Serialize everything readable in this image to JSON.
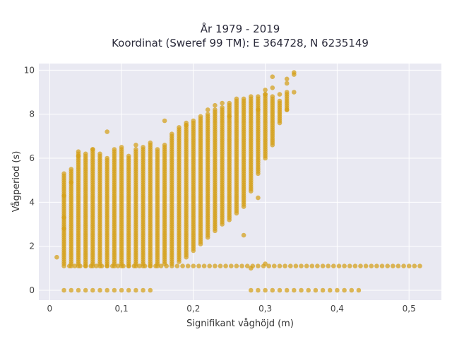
{
  "chart_data": {
    "type": "scatter",
    "title_lines": [
      "År 1979 - 2019",
      "Koordinat (Sweref 99 TM): E 364728, N 6235149"
    ],
    "xlabel": "Signifikant våghöjd (m)",
    "ylabel": "Vågperiod (s)",
    "xlim": [
      -0.015,
      0.545
    ],
    "ylim": [
      -0.45,
      10.3
    ],
    "x_ticks": [
      {
        "value": 0,
        "label": "0"
      },
      {
        "value": 0.1,
        "label": "0,1"
      },
      {
        "value": 0.2,
        "label": "0,2"
      },
      {
        "value": 0.3,
        "label": "0,3"
      },
      {
        "value": 0.4,
        "label": "0,4"
      },
      {
        "value": 0.5,
        "label": "0,5"
      }
    ],
    "y_ticks": [
      {
        "value": 0,
        "label": "0"
      },
      {
        "value": 2,
        "label": "2"
      },
      {
        "value": 4,
        "label": "4"
      },
      {
        "value": 6,
        "label": "6"
      },
      {
        "value": 8,
        "label": "8"
      },
      {
        "value": 10,
        "label": "10"
      }
    ],
    "grid": true,
    "marker_color": "#d4a017",
    "background_color": "#e9e9f2",
    "columns": [
      {
        "x": 0.02,
        "ymin": 1.2,
        "ymax": 5.3
      },
      {
        "x": 0.03,
        "ymin": 1.1,
        "ymax": 5.5
      },
      {
        "x": 0.04,
        "ymin": 1.1,
        "ymax": 6.3
      },
      {
        "x": 0.05,
        "ymin": 1.1,
        "ymax": 6.2
      },
      {
        "x": 0.06,
        "ymin": 1.1,
        "ymax": 6.4
      },
      {
        "x": 0.07,
        "ymin": 1.1,
        "ymax": 6.2
      },
      {
        "x": 0.08,
        "ymin": 1.1,
        "ymax": 6.0
      },
      {
        "x": 0.09,
        "ymin": 1.1,
        "ymax": 6.4
      },
      {
        "x": 0.1,
        "ymin": 1.1,
        "ymax": 6.5
      },
      {
        "x": 0.11,
        "ymin": 1.1,
        "ymax": 6.1
      },
      {
        "x": 0.12,
        "ymin": 1.1,
        "ymax": 6.4
      },
      {
        "x": 0.13,
        "ymin": 1.1,
        "ymax": 6.5
      },
      {
        "x": 0.14,
        "ymin": 1.1,
        "ymax": 6.6
      },
      {
        "x": 0.15,
        "ymin": 1.1,
        "ymax": 6.4
      },
      {
        "x": 0.16,
        "ymin": 1.2,
        "ymax": 6.6
      },
      {
        "x": 0.17,
        "ymin": 1.2,
        "ymax": 7.1
      },
      {
        "x": 0.18,
        "ymin": 1.3,
        "ymax": 7.4
      },
      {
        "x": 0.19,
        "ymin": 1.5,
        "ymax": 7.6
      },
      {
        "x": 0.2,
        "ymin": 1.8,
        "ymax": 7.7
      },
      {
        "x": 0.21,
        "ymin": 2.1,
        "ymax": 7.9
      },
      {
        "x": 0.22,
        "ymin": 2.4,
        "ymax": 8.0
      },
      {
        "x": 0.23,
        "ymin": 2.7,
        "ymax": 8.2
      },
      {
        "x": 0.24,
        "ymin": 3.0,
        "ymax": 8.3
      },
      {
        "x": 0.25,
        "ymin": 3.2,
        "ymax": 8.5
      },
      {
        "x": 0.26,
        "ymin": 3.5,
        "ymax": 8.6
      },
      {
        "x": 0.27,
        "ymin": 3.8,
        "ymax": 8.7
      },
      {
        "x": 0.28,
        "ymin": 4.5,
        "ymax": 8.7
      },
      {
        "x": 0.29,
        "ymin": 5.3,
        "ymax": 8.8
      },
      {
        "x": 0.3,
        "ymin": 6.0,
        "ymax": 8.9
      },
      {
        "x": 0.31,
        "ymin": 6.6,
        "ymax": 8.7
      },
      {
        "x": 0.32,
        "ymin": 7.6,
        "ymax": 8.6
      },
      {
        "x": 0.33,
        "ymin": 8.2,
        "ymax": 9.0
      }
    ],
    "band_lower": {
      "y": 1.1,
      "xmin": 0.02,
      "xmax": 0.52,
      "step": 0.0075
    },
    "band_zero": [
      {
        "xmin": 0.02,
        "xmax": 0.14,
        "y": 0
      },
      {
        "xmin": 0.28,
        "xmax": 0.43,
        "y": 0
      }
    ],
    "scattered_points": [
      [
        0.01,
        1.5
      ],
      [
        0.02,
        2.8
      ],
      [
        0.02,
        3.3
      ],
      [
        0.02,
        4.3
      ],
      [
        0.03,
        4.9
      ],
      [
        0.08,
        7.2
      ],
      [
        0.16,
        7.7
      ],
      [
        0.25,
        7.9
      ],
      [
        0.29,
        8.2
      ],
      [
        0.3,
        8.9
      ],
      [
        0.3,
        9.1
      ],
      [
        0.31,
        9.2
      ],
      [
        0.32,
        8.9
      ],
      [
        0.33,
        9.4
      ],
      [
        0.34,
        9.8
      ],
      [
        0.34,
        9.9
      ],
      [
        0.34,
        9.0
      ],
      [
        0.31,
        9.7
      ],
      [
        0.33,
        9.6
      ],
      [
        0.27,
        2.5
      ],
      [
        0.29,
        4.2
      ],
      [
        0.28,
        1.0
      ],
      [
        0.3,
        1.2
      ],
      [
        0.33,
        8.2
      ],
      [
        0.14,
        6.7
      ],
      [
        0.12,
        6.6
      ],
      [
        0.06,
        6.4
      ],
      [
        0.04,
        6.1
      ],
      [
        0.19,
        7.5
      ],
      [
        0.22,
        8.2
      ],
      [
        0.23,
        8.4
      ],
      [
        0.24,
        8.5
      ],
      [
        0.26,
        8.7
      ],
      [
        0.28,
        8.8
      ],
      [
        0.31,
        8.8
      ]
    ]
  }
}
